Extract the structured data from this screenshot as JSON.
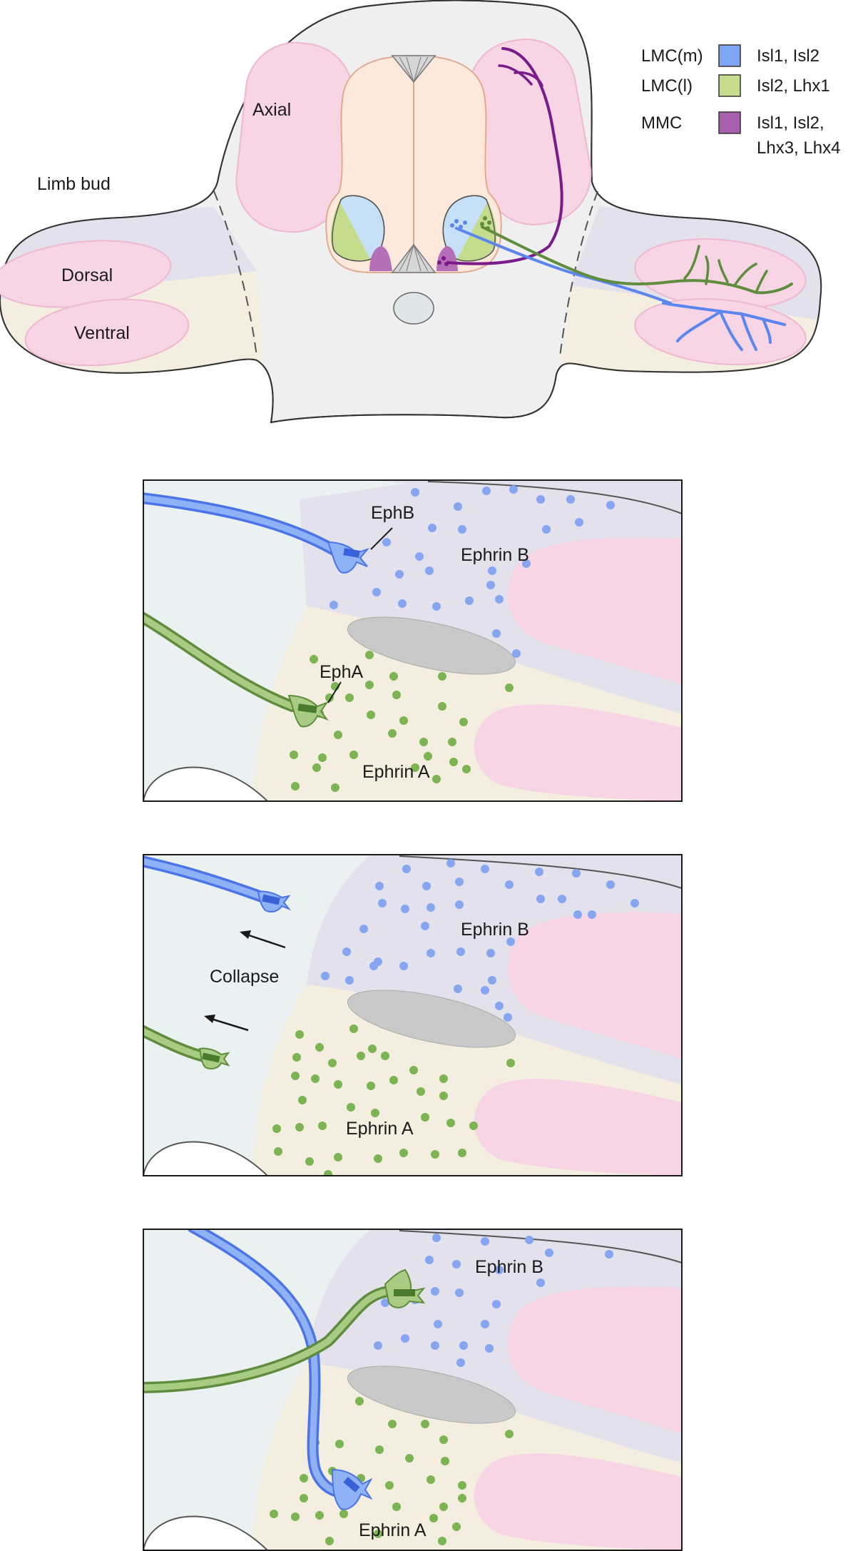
{
  "cross_section": {
    "limb_bud_label": "Limb bud",
    "axial_label": "Axial",
    "dorsal_label": "Dorsal",
    "ventral_label": "Ventral"
  },
  "legend": [
    {
      "pool": "LMC(m)",
      "markers": [
        "Isl1, Isl2"
      ],
      "color": "#7ea6f2"
    },
    {
      "pool": "LMC(l)",
      "markers": [
        "Isl2, Lhx1"
      ],
      "color": "#c4dc8c"
    },
    {
      "pool": "MMC",
      "markers": [
        "Isl1, Isl2,",
        "Lhx3, Lhx4"
      ],
      "color": "#a860ae"
    }
  ],
  "panels": [
    {
      "ephrin_b_label": "Ephrin B",
      "ephrin_a_label": "Ephrin A",
      "ephb_label": "EphB",
      "epha_label": "EphA"
    },
    {
      "ephrin_b_label": "Ephrin B",
      "ephrin_a_label": "Ephrin A",
      "collapse_label": "Collapse"
    },
    {
      "ephrin_b_label": "Ephrin B",
      "ephrin_a_label": "Ephrin A"
    }
  ],
  "colors": {
    "lmc_m_axon": "#5b86ee",
    "lmc_l_axon": "#5f8d3d",
    "mmc_axon": "#7b1a8a",
    "muscle_pink": "#f7d5e4",
    "dorsal_lilac": "#e3e2ec",
    "ventral_cream": "#f4eee0",
    "ephrin_b_dot": "#86a6f2",
    "ephrin_a_dot": "#7cb453"
  }
}
